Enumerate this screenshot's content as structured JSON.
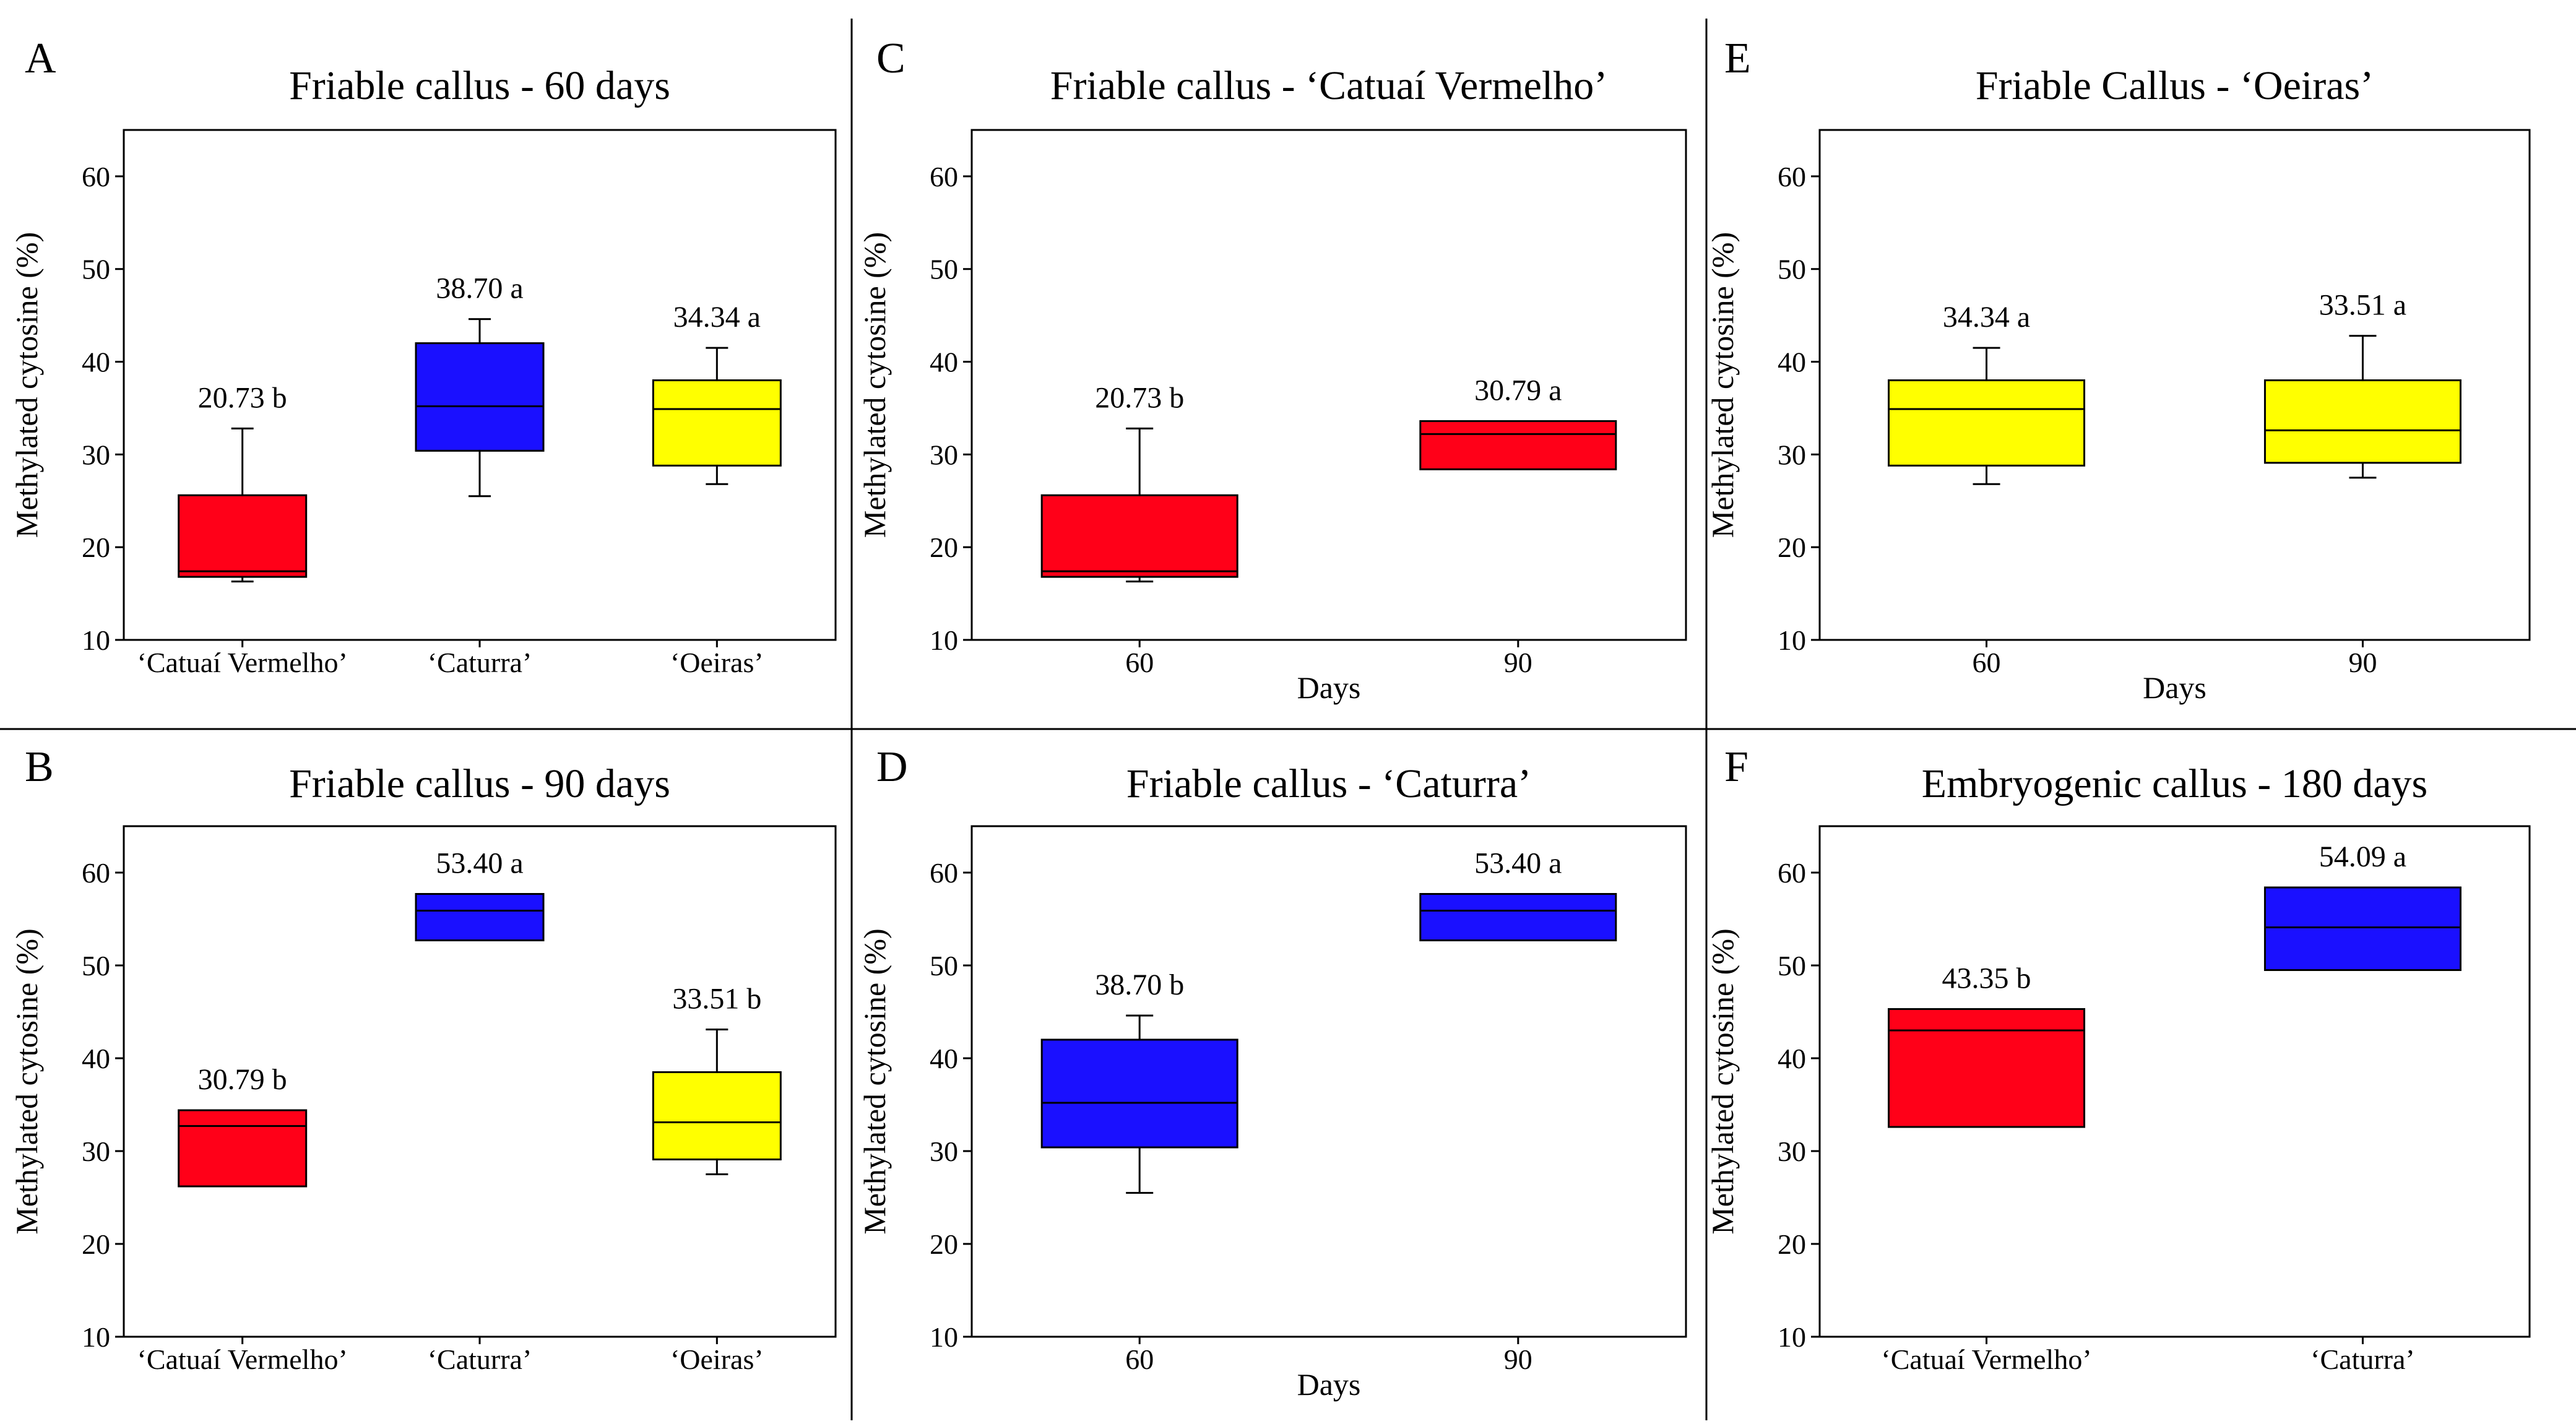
{
  "figure": {
    "colors": {
      "Catuai": "#ff0018",
      "Caturra": "#1a10ff",
      "Oeiras": "#ffff00",
      "stroke": "#000000"
    }
  },
  "chart_data": [
    {
      "panel": "A",
      "type": "boxplot",
      "title": "Friable callus - 60 days",
      "xlabel": "",
      "ylabel": "Methylated cytosine (%)",
      "ylim": [
        10,
        65
      ],
      "yticks": [
        10,
        20,
        30,
        40,
        50,
        60
      ],
      "categories": [
        "‘Catuaí Vermelho’",
        "‘Caturra’",
        "‘Oeiras’"
      ],
      "colors": [
        "Catuai",
        "Caturra",
        "Oeiras"
      ],
      "boxes": [
        {
          "whisker_low": 16.3,
          "q1": 16.8,
          "median": 17.4,
          "q3": 25.6,
          "whisker_high": 32.8
        },
        {
          "whisker_low": 25.5,
          "q1": 30.4,
          "median": 35.2,
          "q3": 42.0,
          "whisker_high": 44.6
        },
        {
          "whisker_low": 26.8,
          "q1": 28.8,
          "median": 34.9,
          "q3": 38.0,
          "whisker_high": 41.5
        }
      ],
      "labels": [
        "20.73 b",
        "38.70 a",
        "34.34 a"
      ]
    },
    {
      "panel": "B",
      "type": "boxplot",
      "title": "Friable callus - 90 days",
      "xlabel": "",
      "ylabel": "Methylated cytosine (%)",
      "ylim": [
        10,
        65
      ],
      "yticks": [
        10,
        20,
        30,
        40,
        50,
        60
      ],
      "categories": [
        "‘Catuaí Vermelho’",
        "‘Caturra’",
        "‘Oeiras’"
      ],
      "colors": [
        "Catuai",
        "Caturra",
        "Oeiras"
      ],
      "boxes": [
        {
          "whisker_low": 26.2,
          "q1": 26.2,
          "median": 32.7,
          "q3": 34.4,
          "whisker_high": 34.4
        },
        {
          "whisker_low": 52.7,
          "q1": 52.7,
          "median": 55.9,
          "q3": 57.7,
          "whisker_high": 57.7
        },
        {
          "whisker_low": 27.5,
          "q1": 29.1,
          "median": 33.1,
          "q3": 38.5,
          "whisker_high": 43.1
        }
      ],
      "labels": [
        "30.79 b",
        "53.40 a",
        "33.51 b"
      ]
    },
    {
      "panel": "C",
      "type": "boxplot",
      "title": "Friable callus - ‘Catuaí Vermelho’",
      "xlabel": "Days",
      "ylabel": "Methylated cytosine (%)",
      "ylim": [
        10,
        65
      ],
      "yticks": [
        10,
        20,
        30,
        40,
        50,
        60
      ],
      "categories": [
        "60",
        "90"
      ],
      "colors": [
        "Catuai",
        "Catuai"
      ],
      "boxes": [
        {
          "whisker_low": 16.3,
          "q1": 16.8,
          "median": 17.4,
          "q3": 25.6,
          "whisker_high": 32.8
        },
        {
          "whisker_low": 28.4,
          "q1": 28.4,
          "median": 32.2,
          "q3": 33.6,
          "whisker_high": 33.6
        }
      ],
      "labels": [
        "20.73 b",
        "30.79 a"
      ]
    },
    {
      "panel": "D",
      "type": "boxplot",
      "title": "Friable callus - ‘Caturra’",
      "xlabel": "Days",
      "ylabel": "Methylated cytosine (%)",
      "ylim": [
        10,
        65
      ],
      "yticks": [
        10,
        20,
        30,
        40,
        50,
        60
      ],
      "categories": [
        "60",
        "90"
      ],
      "colors": [
        "Caturra",
        "Caturra"
      ],
      "boxes": [
        {
          "whisker_low": 25.5,
          "q1": 30.4,
          "median": 35.2,
          "q3": 42.0,
          "whisker_high": 44.6
        },
        {
          "whisker_low": 52.7,
          "q1": 52.7,
          "median": 55.9,
          "q3": 57.7,
          "whisker_high": 57.7
        }
      ],
      "labels": [
        "38.70 b",
        "53.40 a"
      ]
    },
    {
      "panel": "E",
      "type": "boxplot",
      "title": "Friable Callus - ‘Oeiras’",
      "xlabel": "Days",
      "ylabel": "Methylated cytosine (%)",
      "ylim": [
        10,
        65
      ],
      "yticks": [
        10,
        20,
        30,
        40,
        50,
        60
      ],
      "categories": [
        "60",
        "90"
      ],
      "colors": [
        "Oeiras",
        "Oeiras"
      ],
      "boxes": [
        {
          "whisker_low": 26.8,
          "q1": 28.8,
          "median": 34.9,
          "q3": 38.0,
          "whisker_high": 41.5
        },
        {
          "whisker_low": 27.5,
          "q1": 29.1,
          "median": 32.6,
          "q3": 38.0,
          "whisker_high": 42.8
        }
      ],
      "labels": [
        "34.34 a",
        "33.51 a"
      ]
    },
    {
      "panel": "F",
      "type": "boxplot",
      "title": "Embryogenic callus - 180 days",
      "xlabel": "",
      "ylabel": "Methylated cytosine (%)",
      "ylim": [
        10,
        65
      ],
      "yticks": [
        10,
        20,
        30,
        40,
        50,
        60
      ],
      "categories": [
        "‘Catuaí Vermelho’",
        "‘Caturra’"
      ],
      "colors": [
        "Catuai",
        "Caturra"
      ],
      "boxes": [
        {
          "whisker_low": 32.6,
          "q1": 32.6,
          "median": 43.0,
          "q3": 45.3,
          "whisker_high": 45.3
        },
        {
          "whisker_low": 49.5,
          "q1": 49.5,
          "median": 54.1,
          "q3": 58.4,
          "whisker_high": 58.4
        }
      ],
      "labels": [
        "43.35 b",
        "54.09 a"
      ]
    }
  ]
}
